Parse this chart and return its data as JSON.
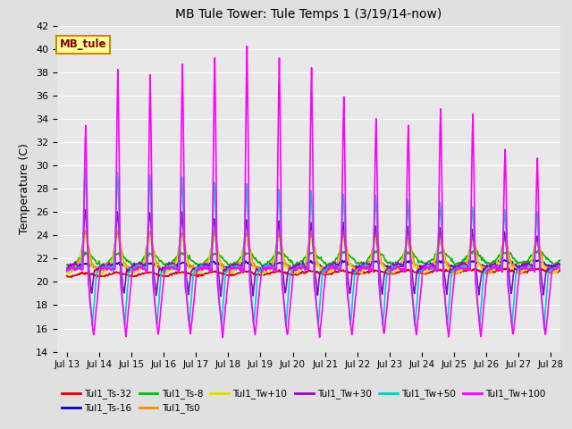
{
  "title": "MB Tule Tower: Tule Temps 1 (3/19/14-now)",
  "ylabel": "Temperature (C)",
  "ylim": [
    14,
    42
  ],
  "yticks": [
    14,
    16,
    18,
    20,
    22,
    24,
    26,
    28,
    30,
    32,
    34,
    36,
    38,
    40,
    42
  ],
  "xlim": [
    -0.3,
    15.3
  ],
  "xtick_labels": [
    "Jul 13",
    "Jul 14",
    "Jul 15",
    "Jul 16",
    "Jul 17",
    "Jul 18",
    "Jul 19",
    "Jul 20",
    "Jul 21",
    "Jul 22",
    "Jul 23",
    "Jul 24",
    "Jul 25",
    "Jul 26",
    "Jul 27",
    "Jul 28"
  ],
  "xtick_positions": [
    0,
    1,
    2,
    3,
    4,
    5,
    6,
    7,
    8,
    9,
    10,
    11,
    12,
    13,
    14,
    15
  ],
  "bg_color": "#e0e0e0",
  "plot_bg_color": "#e8e8e8",
  "grid_color": "#ffffff",
  "series_colors": {
    "Tul1_Ts-32": "#dd0000",
    "Tul1_Ts-16": "#0000cc",
    "Tul1_Ts-8": "#00bb00",
    "Tul1_Ts0": "#ff8800",
    "Tul1_Tw+10": "#dddd00",
    "Tul1_Tw+30": "#9900cc",
    "Tul1_Tw+50": "#00cccc",
    "Tul1_Tw+100": "#ff00ff"
  },
  "legend_label": "MB_tule",
  "legend_bg": "#ffff99",
  "legend_border": "#cc8800",
  "legend_text_color": "#880000"
}
